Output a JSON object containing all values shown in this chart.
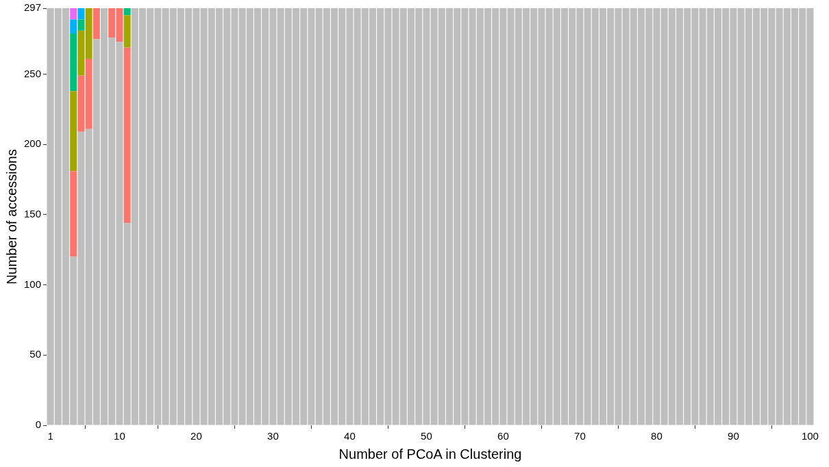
{
  "chart_data": {
    "type": "bar",
    "stacked": true,
    "xlabel": "Number of PCoA in Clustering",
    "ylabel": "Number of accessions",
    "x": [
      1,
      2,
      3,
      4,
      5,
      6,
      7,
      8,
      9,
      10,
      11,
      12,
      13,
      14,
      15,
      16,
      17,
      18,
      19,
      20,
      21,
      22,
      23,
      24,
      25,
      26,
      27,
      28,
      29,
      30,
      31,
      32,
      33,
      34,
      35,
      36,
      37,
      38,
      39,
      40,
      41,
      42,
      43,
      44,
      45,
      46,
      47,
      48,
      49,
      50,
      51,
      52,
      53,
      54,
      55,
      56,
      57,
      58,
      59,
      60,
      61,
      62,
      63,
      64,
      65,
      66,
      67,
      68,
      69,
      70,
      71,
      72,
      73,
      74,
      75,
      76,
      77,
      78,
      79,
      80,
      81,
      82,
      83,
      84,
      85,
      86,
      87,
      88,
      89,
      90,
      91,
      92,
      93,
      94,
      95,
      96,
      97,
      98,
      99,
      100
    ],
    "series": [
      {
        "color": "#bebebe",
        "values": [
          297,
          297,
          297,
          120,
          209,
          211,
          275,
          297,
          276,
          273,
          144,
          297,
          297,
          297,
          297,
          297,
          297,
          297,
          297,
          297,
          297,
          297,
          297,
          297,
          297,
          297,
          297,
          297,
          297,
          297,
          297,
          297,
          297,
          297,
          297,
          297,
          297,
          297,
          297,
          297,
          297,
          297,
          297,
          297,
          297,
          297,
          297,
          297,
          297,
          297,
          297,
          297,
          297,
          297,
          297,
          297,
          297,
          297,
          297,
          297,
          297,
          297,
          297,
          297,
          297,
          297,
          297,
          297,
          297,
          297,
          297,
          297,
          297,
          297,
          297,
          297,
          297,
          297,
          297,
          297,
          297,
          297,
          297,
          297,
          297,
          297,
          297,
          297,
          297,
          297,
          297,
          297,
          297,
          297,
          297,
          297,
          297,
          297,
          297,
          297
        ]
      },
      {
        "color": "#f8766d",
        "values": [
          null,
          null,
          null,
          61,
          40,
          50,
          22,
          null,
          21,
          24,
          125,
          null,
          null,
          null,
          null,
          null,
          null,
          null,
          null,
          null,
          null,
          null,
          null,
          null,
          null,
          null,
          null,
          null,
          null,
          null,
          null,
          null,
          null,
          null,
          null,
          null,
          null,
          null,
          null,
          null,
          null,
          null,
          null,
          null,
          null,
          null,
          null,
          null,
          null,
          null,
          null,
          null,
          null,
          null,
          null,
          null,
          null,
          null,
          null,
          null,
          null,
          null,
          null,
          null,
          null,
          null,
          null,
          null,
          null,
          null,
          null,
          null,
          null,
          null,
          null,
          null,
          null,
          null,
          null,
          null,
          null,
          null,
          null,
          null,
          null,
          null,
          null,
          null,
          null,
          null,
          null,
          null,
          null,
          null,
          null,
          null,
          null,
          null,
          null,
          null
        ]
      },
      {
        "color": "#a3a500",
        "values": [
          null,
          null,
          null,
          57,
          32,
          36,
          null,
          null,
          null,
          null,
          23,
          null,
          null,
          null,
          null,
          null,
          null,
          null,
          null,
          null,
          null,
          null,
          null,
          null,
          null,
          null,
          null,
          null,
          null,
          null,
          null,
          null,
          null,
          null,
          null,
          null,
          null,
          null,
          null,
          null,
          null,
          null,
          null,
          null,
          null,
          null,
          null,
          null,
          null,
          null,
          null,
          null,
          null,
          null,
          null,
          null,
          null,
          null,
          null,
          null,
          null,
          null,
          null,
          null,
          null,
          null,
          null,
          null,
          null,
          null,
          null,
          null,
          null,
          null,
          null,
          null,
          null,
          null,
          null,
          null,
          null,
          null,
          null,
          null,
          null,
          null,
          null,
          null,
          null,
          null,
          null,
          null,
          null,
          null,
          null,
          null,
          null,
          null,
          null,
          null
        ]
      },
      {
        "color": "#00bf7d",
        "values": [
          null,
          null,
          null,
          41,
          8,
          null,
          null,
          null,
          null,
          null,
          5,
          null,
          null,
          null,
          null,
          null,
          null,
          null,
          null,
          null,
          null,
          null,
          null,
          null,
          null,
          null,
          null,
          null,
          null,
          null,
          null,
          null,
          null,
          null,
          null,
          null,
          null,
          null,
          null,
          null,
          null,
          null,
          null,
          null,
          null,
          null,
          null,
          null,
          null,
          null,
          null,
          null,
          null,
          null,
          null,
          null,
          null,
          null,
          null,
          null,
          null,
          null,
          null,
          null,
          null,
          null,
          null,
          null,
          null,
          null,
          null,
          null,
          null,
          null,
          null,
          null,
          null,
          null,
          null,
          null,
          null,
          null,
          null,
          null,
          null,
          null,
          null,
          null,
          null,
          null,
          null,
          null,
          null,
          null,
          null,
          null,
          null,
          null,
          null,
          null
        ]
      },
      {
        "color": "#00b0f6",
        "values": [
          null,
          null,
          null,
          10,
          8,
          null,
          null,
          null,
          null,
          null,
          null,
          null,
          null,
          null,
          null,
          null,
          null,
          null,
          null,
          null,
          null,
          null,
          null,
          null,
          null,
          null,
          null,
          null,
          null,
          null,
          null,
          null,
          null,
          null,
          null,
          null,
          null,
          null,
          null,
          null,
          null,
          null,
          null,
          null,
          null,
          null,
          null,
          null,
          null,
          null,
          null,
          null,
          null,
          null,
          null,
          null,
          null,
          null,
          null,
          null,
          null,
          null,
          null,
          null,
          null,
          null,
          null,
          null,
          null,
          null,
          null,
          null,
          null,
          null,
          null,
          null,
          null,
          null,
          null,
          null,
          null,
          null,
          null,
          null,
          null,
          null,
          null,
          null,
          null,
          null,
          null,
          null,
          null,
          null,
          null,
          null,
          null,
          null,
          null,
          null
        ]
      },
      {
        "color": "#e76bf3",
        "values": [
          null,
          null,
          null,
          8,
          null,
          null,
          null,
          null,
          null,
          null,
          null,
          null,
          null,
          null,
          null,
          null,
          null,
          null,
          null,
          null,
          null,
          null,
          null,
          null,
          null,
          null,
          null,
          null,
          null,
          null,
          null,
          null,
          null,
          null,
          null,
          null,
          null,
          null,
          null,
          null,
          null,
          null,
          null,
          null,
          null,
          null,
          null,
          null,
          null,
          null,
          null,
          null,
          null,
          null,
          null,
          null,
          null,
          null,
          null,
          null,
          null,
          null,
          null,
          null,
          null,
          null,
          null,
          null,
          null,
          null,
          null,
          null,
          null,
          null,
          null,
          null,
          null,
          null,
          null,
          null,
          null,
          null,
          null,
          null,
          null,
          null,
          null,
          null,
          null,
          null,
          null,
          null,
          null,
          null,
          null,
          null,
          null,
          null,
          null,
          null
        ]
      }
    ],
    "xlim": [
      0.5,
      100.5
    ],
    "xticks": [
      1,
      10,
      20,
      30,
      40,
      50,
      60,
      70,
      80,
      90,
      100
    ],
    "ylim": [
      0,
      297
    ],
    "yticks": [
      0,
      50,
      100,
      150,
      200,
      250,
      297
    ],
    "grid": false,
    "legend": false
  }
}
